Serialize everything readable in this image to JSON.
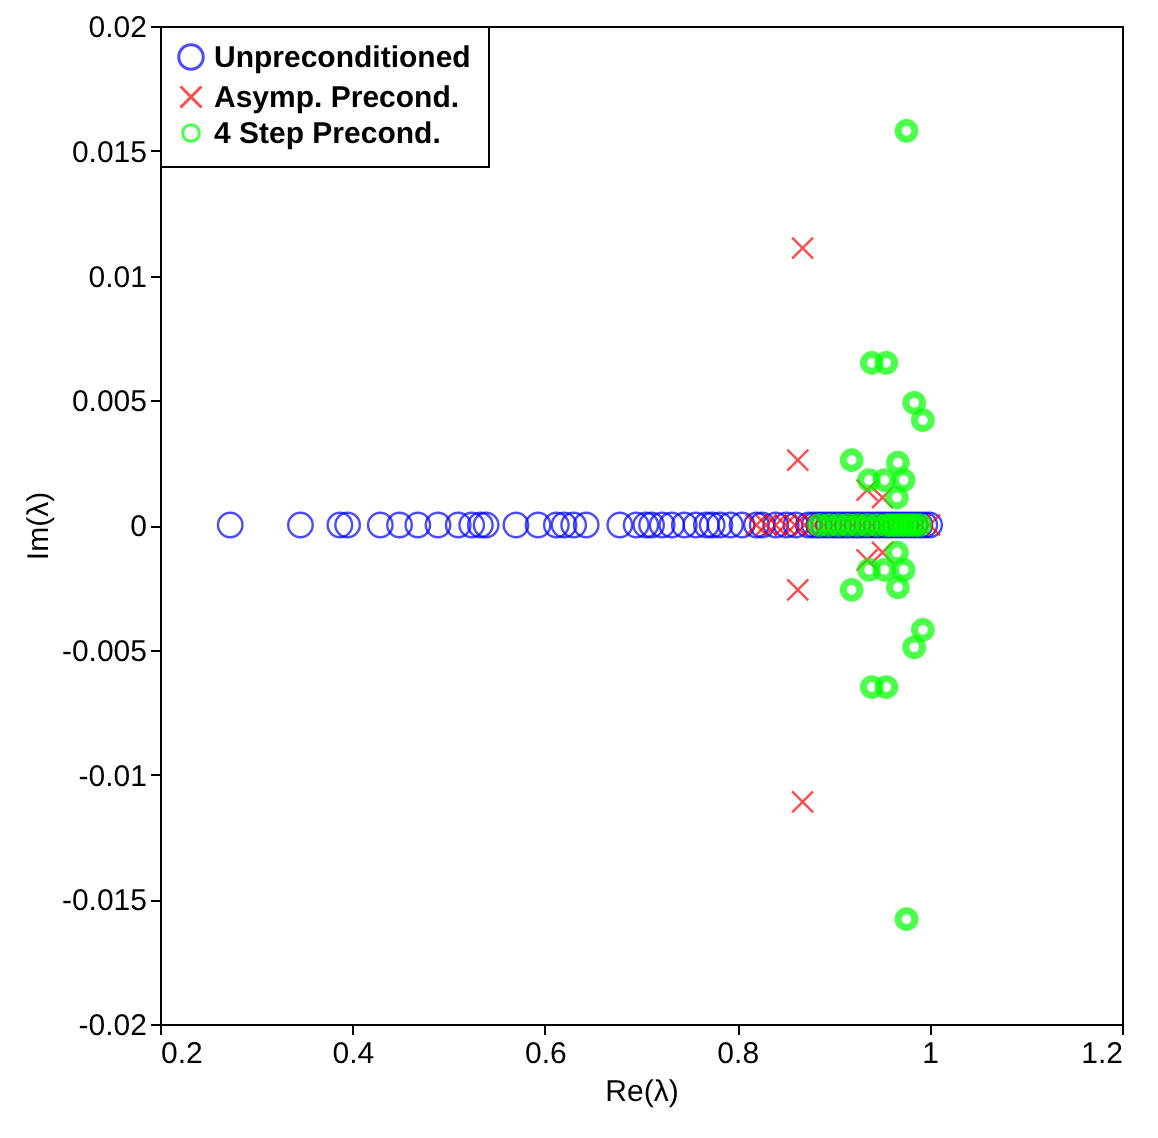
{
  "chart_data": {
    "type": "scatter",
    "xlabel": "Re(λ)",
    "ylabel": "Im(λ)",
    "xlim": [
      0.2,
      1.2
    ],
    "xticks": [
      0.2,
      0.4,
      0.6,
      0.8,
      1,
      1.2
    ],
    "ylim": [
      -0.02,
      0.02
    ],
    "yticks": [
      -0.02,
      -0.015,
      -0.01,
      -0.005,
      0,
      0.005,
      0.01,
      0.015,
      0.02
    ],
    "grid": false,
    "legend": "top left",
    "series": [
      {
        "name": "Unpreconditioned",
        "color": "#0000ff",
        "marker": "circle",
        "x": [
          0.273,
          0.346,
          0.387,
          0.395,
          0.429,
          0.449,
          0.468,
          0.489,
          0.51,
          0.524,
          0.533,
          0.539,
          0.57,
          0.593,
          0.612,
          0.62,
          0.63,
          0.643,
          0.678,
          0.695,
          0.705,
          0.711,
          0.722,
          0.732,
          0.745,
          0.757,
          0.768,
          0.774,
          0.782,
          0.793,
          0.805,
          0.82,
          0.826,
          0.84,
          0.851,
          0.861,
          0.874,
          0.88,
          0.885,
          0.89,
          0.895,
          0.9,
          0.905,
          0.91,
          0.915,
          0.92,
          0.925,
          0.93,
          0.935,
          0.94,
          0.945,
          0.95,
          0.955,
          0.96,
          0.965,
          0.97,
          0.975,
          0.98,
          0.985,
          0.99,
          0.995,
          1.0
        ],
        "values": [
          0,
          0,
          0,
          0,
          0,
          0,
          0,
          0,
          0,
          0,
          0,
          0,
          0,
          0,
          0,
          0,
          0,
          0,
          0,
          0,
          0,
          0,
          0,
          0,
          0,
          0,
          0,
          0,
          0,
          0,
          0,
          0,
          0,
          0,
          0,
          0,
          0,
          0,
          0,
          0,
          0,
          0,
          0,
          0,
          0,
          0,
          0,
          0,
          0,
          0,
          0,
          0,
          0,
          0,
          0,
          0,
          0,
          0,
          0,
          0,
          0,
          0
        ]
      },
      {
        "name": "Asymp. Precond.",
        "color": "#ff0000",
        "marker": "cross",
        "x": [
          0.868,
          0.868,
          0.863,
          0.863,
          0.935,
          0.935,
          0.951,
          0.951,
          0.82,
          0.83,
          0.84,
          0.85,
          0.86,
          0.87,
          0.88,
          0.89,
          0.9,
          0.91,
          0.92,
          0.93,
          0.94,
          0.95,
          0.96,
          0.97,
          0.98,
          0.99,
          1.0
        ],
        "values": [
          0.0111,
          -0.0111,
          0.0026,
          -0.0026,
          0.0014,
          -0.0014,
          0.0011,
          -0.0011,
          0,
          0,
          0,
          0,
          0,
          0,
          0,
          0,
          0,
          0,
          0,
          0,
          0,
          0,
          0,
          0,
          0,
          0,
          0
        ]
      },
      {
        "name": "4 Step Precond.",
        "color": "#00ff00",
        "marker": "point",
        "x": [
          0.976,
          0.976,
          0.94,
          0.955,
          0.94,
          0.955,
          0.984,
          0.993,
          0.984,
          0.993,
          0.919,
          0.967,
          0.919,
          0.967,
          0.937,
          0.953,
          0.973,
          0.937,
          0.953,
          0.973,
          0.966,
          0.966,
          0.885,
          0.895,
          0.905,
          0.915,
          0.925,
          0.935,
          0.945,
          0.955,
          0.96,
          0.965,
          0.97,
          0.975,
          0.98,
          0.985,
          0.99
        ],
        "values": [
          0.0158,
          -0.0158,
          0.0065,
          0.0065,
          -0.0065,
          -0.0065,
          0.0049,
          0.0042,
          -0.0049,
          -0.0042,
          0.0026,
          0.0025,
          -0.0026,
          -0.0025,
          0.0018,
          0.0018,
          0.0018,
          -0.0018,
          -0.0018,
          -0.0018,
          0.0011,
          -0.0011,
          0,
          0,
          0,
          0,
          0,
          0,
          0,
          0,
          0,
          0,
          0,
          0,
          0,
          0,
          0
        ]
      }
    ]
  }
}
